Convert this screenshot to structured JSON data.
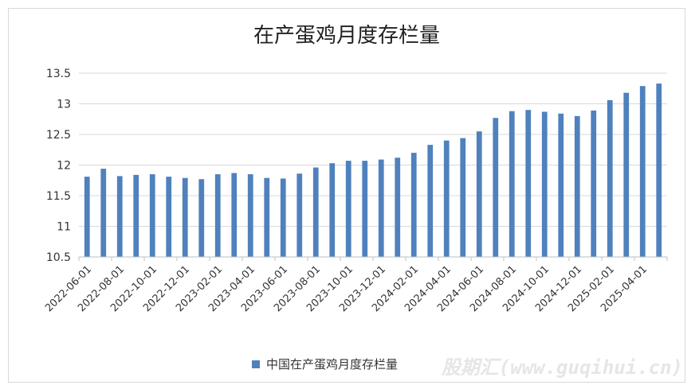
{
  "chart_data": {
    "type": "bar",
    "title": "在产蛋鸡月度存栏量",
    "categories": [
      "2022-06-01",
      "2022-07-01",
      "2022-08-01",
      "2022-09-01",
      "2022-10-01",
      "2022-11-01",
      "2022-12-01",
      "2023-01-01",
      "2023-02-01",
      "2023-03-01",
      "2023-04-01",
      "2023-05-01",
      "2023-06-01",
      "2023-07-01",
      "2023-08-01",
      "2023-09-01",
      "2023-10-01",
      "2023-11-01",
      "2023-12-01",
      "2024-01-01",
      "2024-02-01",
      "2024-03-01",
      "2024-04-01",
      "2024-05-01",
      "2024-06-01",
      "2024-07-01",
      "2024-08-01",
      "2024-09-01",
      "2024-10-01",
      "2024-11-01",
      "2024-12-01",
      "2025-01-01",
      "2025-02-01",
      "2025-03-01",
      "2025-04-01",
      "2025-05-01"
    ],
    "x_tick_labels": [
      "2022-06-01",
      "2022-08-01",
      "2022-10-01",
      "2022-12-01",
      "2023-02-01",
      "2023-04-01",
      "2023-06-01",
      "2023-08-01",
      "2023-10-01",
      "2023-12-01",
      "2024-02-01",
      "2024-04-01",
      "2024-06-01",
      "2024-08-01",
      "2024-10-01",
      "2024-12-01",
      "2025-02-01",
      "2025-04-01"
    ],
    "series": [
      {
        "name": "中国在产蛋鸡月度存栏量",
        "color": "#4f81bd",
        "values": [
          11.81,
          11.94,
          11.82,
          11.84,
          11.85,
          11.81,
          11.79,
          11.77,
          11.85,
          11.87,
          11.85,
          11.79,
          11.78,
          11.86,
          11.96,
          12.03,
          12.07,
          12.07,
          12.09,
          12.12,
          12.2,
          12.33,
          12.4,
          12.44,
          12.55,
          12.77,
          12.88,
          12.9,
          12.87,
          12.84,
          12.8,
          12.89,
          13.06,
          13.18,
          13.29,
          13.33
        ]
      }
    ],
    "y_ticks": [
      "10.5",
      "11",
      "11.5",
      "12",
      "12.5",
      "13",
      "13.5"
    ],
    "ylim": [
      10.5,
      13.5
    ],
    "grid": true,
    "legend": "bottom-center"
  },
  "watermark": "股期汇(www.guqihui.cn)"
}
